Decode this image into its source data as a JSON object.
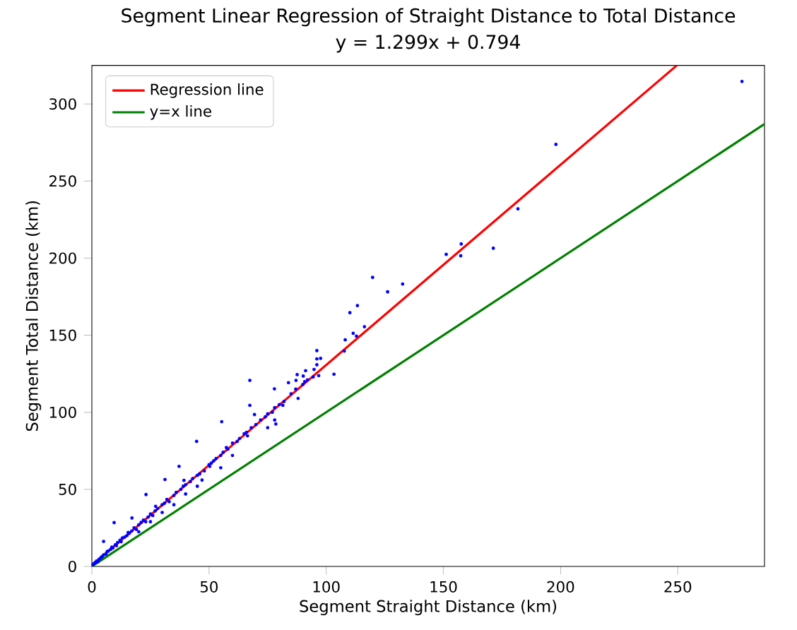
{
  "chart_data": {
    "type": "scatter",
    "title": "Segment Linear Regression of Straight Distance to Total Distance",
    "subtitle": "y = 1.299x + 0.794",
    "xlabel": "Segment Straight Distance (km)",
    "ylabel": "Segment Total Distance (km)",
    "xlim": [
      0,
      287
    ],
    "ylim": [
      0,
      325
    ],
    "xticks": [
      0,
      50,
      100,
      150,
      200,
      250
    ],
    "yticks": [
      0,
      50,
      100,
      150,
      200,
      250,
      300
    ],
    "legend": "top left",
    "series": [
      {
        "color": "#0000ff",
        "marker": "circle",
        "x": [
          0.5,
          1,
          1.5,
          2,
          2.5,
          3,
          3.5,
          4,
          4.5,
          5,
          6,
          6.5,
          7,
          8,
          8.5,
          9,
          10,
          10.5,
          11,
          12,
          12.5,
          13,
          14,
          15,
          15.5,
          16,
          17,
          18,
          19,
          20,
          21,
          22,
          23,
          24,
          25,
          26,
          27,
          28,
          30,
          31,
          32,
          33,
          35,
          36,
          38,
          39,
          40,
          42,
          43,
          45,
          46,
          48,
          50,
          51,
          52,
          53,
          55,
          56,
          58,
          60,
          62,
          63,
          65,
          66,
          68,
          70,
          72,
          74,
          75,
          77,
          78,
          80,
          82,
          85,
          87,
          90,
          92,
          75,
          78,
          60,
          55,
          47,
          35,
          40,
          25,
          20,
          30,
          45,
          96.0,
          90.2,
          88,
          77.9,
          67.4,
          67.4,
          78.5,
          81.5,
          69.4,
          66.4,
          55.4,
          44.7,
          57.4,
          50.3,
          37.2,
          31.2,
          39.3,
          23.1,
          27.2,
          9.5,
          17.1,
          5,
          96,
          97.6,
          96,
          91.2,
          87.6,
          94.8,
          94.4,
          96.8,
          87.1,
          83.9,
          90.8,
          103.3,
          107.7,
          108.1,
          112.9,
          111.5,
          116.3,
          110.1,
          113.3,
          126.2,
          132.6,
          119.8,
          151.2,
          157.4,
          157.6,
          171.3,
          181.8,
          198,
          277.4
        ],
        "values": [
          1.2,
          2,
          2.5,
          3.5,
          3,
          4.5,
          5,
          6,
          6.5,
          7.5,
          8,
          9.5,
          10,
          11,
          12.5,
          12,
          14,
          13.5,
          15.5,
          17,
          16,
          18.5,
          19,
          20,
          22,
          21.5,
          23,
          25,
          24,
          27,
          28.5,
          30,
          29,
          32,
          34,
          33,
          36,
          37.5,
          40,
          41,
          43.5,
          42,
          46,
          48,
          50,
          52,
          53,
          55,
          57,
          59,
          60,
          62,
          66,
          67,
          68.5,
          70,
          72,
          74,
          76,
          80,
          81,
          83,
          86,
          87,
          90,
          92,
          95,
          97,
          99,
          100,
          103,
          105,
          107,
          112,
          115,
          118,
          121,
          90,
          95,
          72,
          64,
          56,
          40,
          47,
          29,
          22.5,
          35,
          52,
          134.6,
          123.5,
          109,
          115.2,
          120.7,
          104.5,
          92.4,
          104.5,
          98.5,
          84.7,
          93.9,
          81.1,
          77.1,
          64.9,
          64.9,
          56.4,
          55.8,
          46.6,
          39,
          28.4,
          31.4,
          16.2,
          140,
          135,
          130.8,
          127,
          124.4,
          127.8,
          122.9,
          123.8,
          120.7,
          119.2,
          119.8,
          124.7,
          139.7,
          147,
          149.4,
          151.2,
          155.5,
          164.6,
          169.2,
          178.1,
          183.2,
          187.5,
          202.4,
          201.5,
          209.2,
          206.4,
          232,
          273.8,
          314.6
        ]
      },
      {
        "type": "line",
        "name": "Regression line",
        "color": "#ff0000",
        "marker": "none",
        "x": [
          0,
          249.6
        ],
        "values": [
          0.8,
          325
        ]
      },
      {
        "type": "line",
        "name": "y=x line",
        "color": "#008000",
        "marker": "none",
        "x": [
          0,
          287
        ],
        "values": [
          0,
          287
        ]
      }
    ]
  }
}
